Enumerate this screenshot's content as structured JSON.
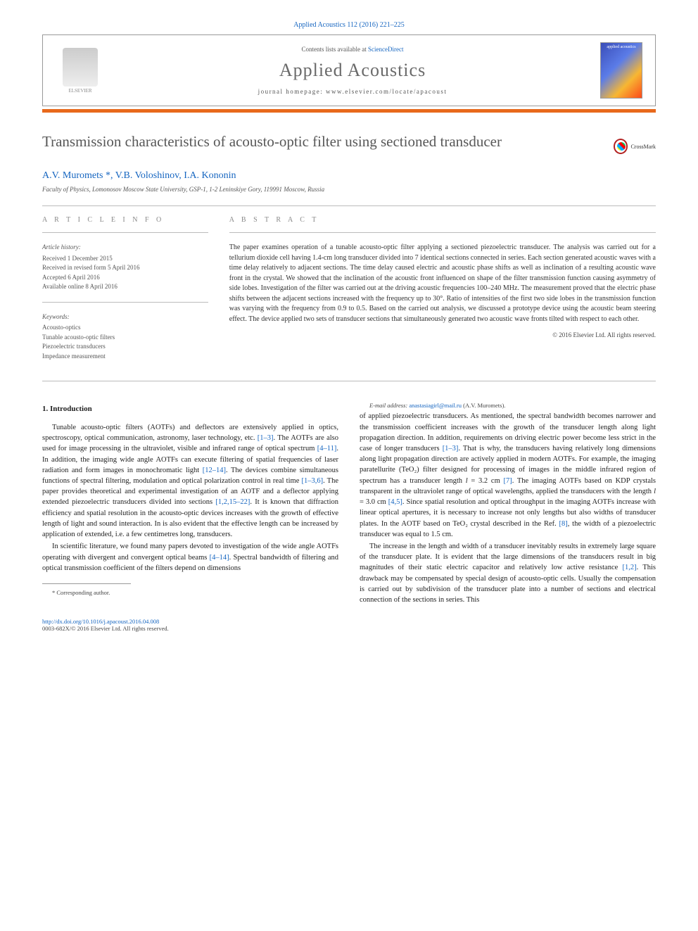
{
  "header": {
    "citation": "Applied Acoustics 112 (2016) 221–225",
    "contents_prefix": "Contents lists available at ",
    "contents_link": "ScienceDirect",
    "journal": "Applied Acoustics",
    "homepage_prefix": "journal homepage: ",
    "homepage_url": "www.elsevier.com/locate/apacoust",
    "publisher_label": "ELSEVIER",
    "cover_label": "applied acoustics"
  },
  "title": "Transmission characteristics of acousto-optic filter using sectioned transducer",
  "crossmark_label": "CrossMark",
  "authors_html": "A.V. Muromets *, V.B. Voloshinov, I.A. Kononin",
  "affiliation": "Faculty of Physics, Lomonosov Moscow State University, GSP-1, 1-2 Leninskiye Gory, 119991 Moscow, Russia",
  "info_label": "a r t i c l e   i n f o",
  "abstract_label": "a b s t r a c t",
  "history": {
    "heading": "Article history:",
    "received": "Received 1 December 2015",
    "revised": "Received in revised form 5 April 2016",
    "accepted": "Accepted 6 April 2016",
    "online": "Available online 8 April 2016"
  },
  "keywords": {
    "heading": "Keywords:",
    "items": [
      "Acousto-optics",
      "Tunable acousto-optic filters",
      "Piezoelectric transducers",
      "Impedance measurement"
    ]
  },
  "abstract": "The paper examines operation of a tunable acousto-optic filter applying a sectioned piezoelectric transducer. The analysis was carried out for a tellurium dioxide cell having 1.4-cm long transducer divided into 7 identical sections connected in series. Each section generated acoustic waves with a time delay relatively to adjacent sections. The time delay caused electric and acoustic phase shifts as well as inclination of a resulting acoustic wave front in the crystal. We showed that the inclination of the acoustic front influenced on shape of the filter transmission function causing asymmetry of side lobes. Investigation of the filter was carried out at the driving acoustic frequencies 100–240 MHz. The measurement proved that the electric phase shifts between the adjacent sections increased with the frequency up to 30°. Ratio of intensities of the first two side lobes in the transmission function was varying with the frequency from 0.9 to 0.5. Based on the carried out analysis, we discussed a prototype device using the acoustic beam steering effect. The device applied two sets of transducer sections that simultaneously generated two acoustic wave fronts tilted with respect to each other.",
  "copyright": "© 2016 Elsevier Ltd. All rights reserved.",
  "section1_heading": "1. Introduction",
  "para1": "Tunable acousto-optic filters (AOTFs) and deflectors are extensively applied in optics, spectroscopy, optical communication, astronomy, laser technology, etc. [1–3]. The AOTFs are also used for image processing in the ultraviolet, visible and infrared range of optical spectrum [4–11]. In addition, the imaging wide angle AOTFs can execute filtering of spatial frequencies of laser radiation and form images in monochromatic light [12–14]. The devices combine simultaneous functions of spectral filtering, modulation and optical polarization control in real time [1–3,6]. The paper provides theoretical and experimental investigation of an AOTF and a deflector applying extended piezoelectric transducers divided into sections [1,2,15–22]. It is known that diffraction efficiency and spatial resolution in the acousto-optic devices increases with the growth of effective length of light and sound interaction. In is also evident that the effective length can be increased by application of extended, i.e. a few centimetres long, transducers.",
  "para2": "In scientific literature, we found many papers devoted to investigation of the wide angle AOTFs operating with divergent and convergent optical beams [4–14]. Spectral bandwidth of filtering and optical transmission coefficient of the filters depend on dimensions of applied piezoelectric transducers. As mentioned, the spectral bandwidth becomes narrower and the transmission coefficient increases with the growth of the transducer length along light propagation direction. In addition, requirements on driving electric power become less strict in the case of longer transducers [1–3]. That is why, the transducers having relatively long dimensions along light propagation direction are actively applied in modern AOTFs. For example, the imaging paratellurite (TeO₂) filter designed for processing of images in the middle infrared region of spectrum has a transducer length l = 3.2 cm [7]. The imaging AOTFs based on KDP crystals transparent in the ultraviolet range of optical wavelengths, applied the transducers with the length l = 3.0 cm [4,5]. Since spatial resolution and optical throughput in the imaging AOTFs increase with linear optical apertures, it is necessary to increase not only lengths but also widths of transducer plates. In the AOTF based on TeO₂ crystal described in the Ref. [8], the width of a piezoelectric transducer was equal to 1.5 cm.",
  "para3": "The increase in the length and width of a transducer inevitably results in extremely large square of the transducer plate. It is evident that the large dimensions of the transducers result in big magnitudes of their static electric capacitor and relatively low active resistance [1,2]. This drawback may be compensated by special design of acousto-optic cells. Usually the compensation is carried out by subdivision of the transducer plate into a number of sections and electrical connection of the sections in series. This",
  "footnote": {
    "corr": "* Corresponding author.",
    "email_label": "E-mail address: ",
    "email": "anastasiagirl@mail.ru",
    "email_suffix": " (A.V. Muromets)."
  },
  "footer": {
    "doi_url": "http://dx.doi.org/10.1016/j.apacoust.2016.04.008",
    "issn_line": "0003-682X/© 2016 Elsevier Ltd. All rights reserved."
  },
  "refs": {
    "r1_3": "[1–3]",
    "r4_11": "[4–11]",
    "r12_14": "[12–14]",
    "r1_3_6": "[1–3,6]",
    "r1_2_15_22": "[1,2,15–22]",
    "r4_14": "[4–14]",
    "r1_3b": "[1–3]",
    "r7": "[7]",
    "r4_5": "[4,5]",
    "r8": "[8]",
    "r1_2": "[1,2]"
  },
  "colors": {
    "link": "#1565c0",
    "accent_bar": "#e8691c",
    "title_text": "#575757",
    "body_text": "#333333"
  }
}
